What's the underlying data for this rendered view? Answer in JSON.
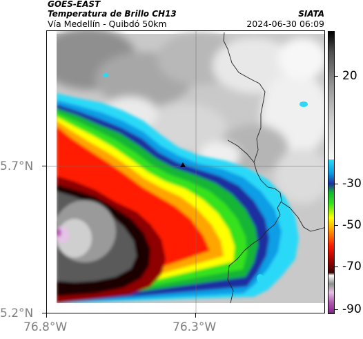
{
  "header": {
    "satellite": "GOES-EAST",
    "product": "Temperatura de Brillo CH13",
    "route": "Vía Medellín - Quibdó 50km",
    "source": "SIATA",
    "datetime": "2024-06-30 06:09"
  },
  "axes": {
    "y_ticks": [
      "5.7°N",
      "5.2°N"
    ],
    "x_ticks": [
      "76.8°W",
      "76.3°W"
    ]
  },
  "colorbar": {
    "tick_labels": [
      "20",
      "-30",
      "-50",
      "-70",
      "-90"
    ],
    "tick_values": [
      20,
      -30,
      -50,
      -70,
      -90
    ],
    "range": [
      -95,
      30
    ],
    "colors": {
      "warm_gray": "#d8d8d8",
      "cyan": "#2bd9f7",
      "blue": "#1d2ea0",
      "green": "#36e21b",
      "yellow": "#ffff00",
      "red": "#ff1a00",
      "dark_red": "#3b0000",
      "magenta": "#b25bb2"
    }
  },
  "map": {
    "marker_icon": "location-marker-icon",
    "features": [
      "gridlines",
      "department-borders",
      "cloud-top-temperature-field"
    ]
  }
}
